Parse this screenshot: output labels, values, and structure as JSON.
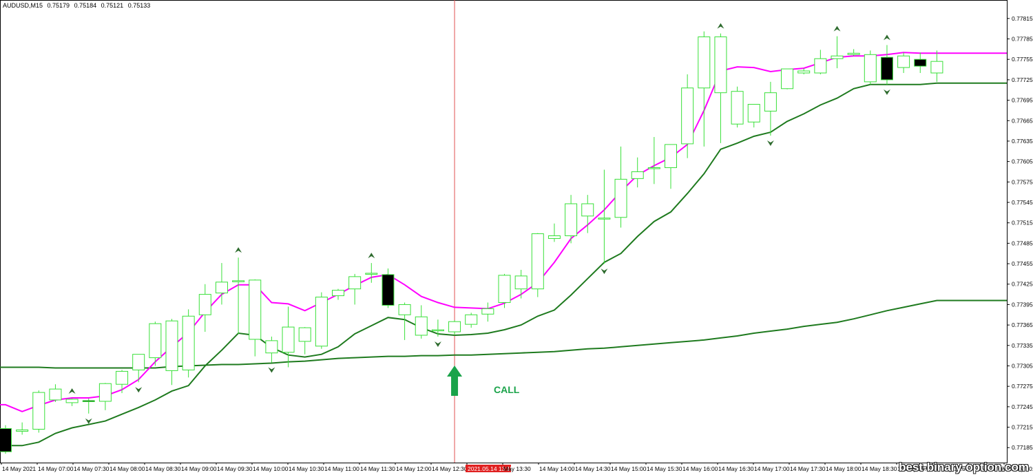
{
  "header": {
    "symbol": "AUDUSD,M15",
    "open": "0.75179",
    "high": "0.75184",
    "low": "0.75121",
    "close": "0.75133"
  },
  "signal": {
    "label": "CALL",
    "time_label": "2021.05.14 13:15",
    "arrow_color": "#1aa34a",
    "line_color": "#e05050"
  },
  "watermark": "best-binary-option.com",
  "colors": {
    "bull_body": "#ffffff",
    "bull_border": "#38e038",
    "bear_body": "#000000",
    "wick": "#38e038",
    "ma_fast": "#ff00ff",
    "ma_slow": "#1e7a1e",
    "ma_long": "#1e7a1e",
    "fractal": "#2e6b2e",
    "grid_text": "#000000"
  },
  "chart_data": {
    "type": "candlestick",
    "symbol": "AUDUSD,M15",
    "y_ticks": [
      "0.77815",
      "0.77785",
      "0.77755",
      "0.77725",
      "0.77695",
      "0.77665",
      "0.77635",
      "0.77605",
      "0.77575",
      "0.77545",
      "0.77515",
      "0.77485",
      "0.77455",
      "0.77425",
      "0.77395",
      "0.77365",
      "0.77335",
      "0.77305",
      "0.77275",
      "0.77245",
      "0.77215",
      "0.77185"
    ],
    "ylim": [
      0.77163,
      0.7783
    ],
    "x_ticks": [
      "14 May 2021",
      "14 May 07:00",
      "14 May 07:30",
      "14 May 08:00",
      "14 May 08:30",
      "14 May 09:00",
      "14 May 09:30",
      "14 May 10:00",
      "14 May 10:30",
      "14 May 11:00",
      "14 May 11:30",
      "14 May 12:00",
      "14 May 12:30",
      "2021.05.14 13:15",
      "May 13:30",
      "14 May 14:00",
      "14 May 14:30",
      "14 May 15:00",
      "14 May 15:30",
      "14 May 16:00",
      "14 May 16:30",
      "14 May 17:00",
      "14 May 17:30",
      "14 May 18:00",
      "14 May 18:30",
      "14 May 19:00",
      "14 May 19:30",
      "14 May 20:00",
      "14 May 20:"
    ],
    "candles": [
      {
        "o": 0.77213,
        "h": 0.77218,
        "l": 0.77176,
        "c": 0.77179
      },
      {
        "o": 0.77209,
        "h": 0.77222,
        "l": 0.77204,
        "c": 0.77211
      },
      {
        "o": 0.77212,
        "h": 0.77269,
        "l": 0.77207,
        "c": 0.77266
      },
      {
        "o": 0.77255,
        "h": 0.77278,
        "l": 0.77252,
        "c": 0.77271
      },
      {
        "o": 0.77251,
        "h": 0.77257,
        "l": 0.77246,
        "c": 0.77256
      },
      {
        "o": 0.77254,
        "h": 0.77257,
        "l": 0.77235,
        "c": 0.77253
      },
      {
        "o": 0.77253,
        "h": 0.7728,
        "l": 0.7724,
        "c": 0.77279
      },
      {
        "o": 0.77278,
        "h": 0.77299,
        "l": 0.77265,
        "c": 0.77297
      },
      {
        "o": 0.77299,
        "h": 0.77321,
        "l": 0.77281,
        "c": 0.77322
      },
      {
        "o": 0.77317,
        "h": 0.7737,
        "l": 0.77305,
        "c": 0.77367
      },
      {
        "o": 0.77298,
        "h": 0.77374,
        "l": 0.77277,
        "c": 0.77371
      },
      {
        "o": 0.77299,
        "h": 0.77388,
        "l": 0.77288,
        "c": 0.77378
      },
      {
        "o": 0.7738,
        "h": 0.77425,
        "l": 0.77355,
        "c": 0.7741
      },
      {
        "o": 0.77412,
        "h": 0.77456,
        "l": 0.77395,
        "c": 0.77428
      },
      {
        "o": 0.77429,
        "h": 0.77464,
        "l": 0.77352,
        "c": 0.7743
      },
      {
        "o": 0.77344,
        "h": 0.77432,
        "l": 0.77319,
        "c": 0.77431
      },
      {
        "o": 0.77324,
        "h": 0.77348,
        "l": 0.7731,
        "c": 0.77342
      },
      {
        "o": 0.77325,
        "h": 0.77392,
        "l": 0.77303,
        "c": 0.77362
      },
      {
        "o": 0.77341,
        "h": 0.77362,
        "l": 0.77322,
        "c": 0.77361
      },
      {
        "o": 0.77334,
        "h": 0.77413,
        "l": 0.7733,
        "c": 0.77406
      },
      {
        "o": 0.77408,
        "h": 0.77418,
        "l": 0.77402,
        "c": 0.77416
      },
      {
        "o": 0.77418,
        "h": 0.7744,
        "l": 0.77395,
        "c": 0.77436
      },
      {
        "o": 0.77441,
        "h": 0.77456,
        "l": 0.77427,
        "c": 0.77441
      },
      {
        "o": 0.77439,
        "h": 0.77448,
        "l": 0.7739,
        "c": 0.77394
      },
      {
        "o": 0.7738,
        "h": 0.77398,
        "l": 0.77343,
        "c": 0.77395
      },
      {
        "o": 0.7735,
        "h": 0.77394,
        "l": 0.77345,
        "c": 0.77377
      },
      {
        "o": 0.77358,
        "h": 0.77373,
        "l": 0.77348,
        "c": 0.77358
      },
      {
        "o": 0.77355,
        "h": 0.77372,
        "l": 0.7735,
        "c": 0.7737
      },
      {
        "o": 0.77366,
        "h": 0.77383,
        "l": 0.77361,
        "c": 0.7738
      },
      {
        "o": 0.77381,
        "h": 0.77398,
        "l": 0.7737,
        "c": 0.77389
      },
      {
        "o": 0.77398,
        "h": 0.7744,
        "l": 0.7739,
        "c": 0.77438
      },
      {
        "o": 0.77418,
        "h": 0.77446,
        "l": 0.77404,
        "c": 0.77437
      },
      {
        "o": 0.77418,
        "h": 0.775,
        "l": 0.77406,
        "c": 0.77499
      },
      {
        "o": 0.77492,
        "h": 0.77514,
        "l": 0.77487,
        "c": 0.77496
      },
      {
        "o": 0.77496,
        "h": 0.77556,
        "l": 0.77485,
        "c": 0.77543
      },
      {
        "o": 0.77525,
        "h": 0.77556,
        "l": 0.775,
        "c": 0.77543
      },
      {
        "o": 0.77521,
        "h": 0.77593,
        "l": 0.77455,
        "c": 0.77522
      },
      {
        "o": 0.77523,
        "h": 0.77627,
        "l": 0.77508,
        "c": 0.77579
      },
      {
        "o": 0.7758,
        "h": 0.77611,
        "l": 0.77567,
        "c": 0.7759
      },
      {
        "o": 0.77595,
        "h": 0.77641,
        "l": 0.77572,
        "c": 0.77596
      },
      {
        "o": 0.77596,
        "h": 0.77625,
        "l": 0.77565,
        "c": 0.7763
      },
      {
        "o": 0.77631,
        "h": 0.77733,
        "l": 0.7761,
        "c": 0.77713
      },
      {
        "o": 0.77713,
        "h": 0.77796,
        "l": 0.77627,
        "c": 0.77788
      },
      {
        "o": 0.77706,
        "h": 0.77793,
        "l": 0.77632,
        "c": 0.77788
      },
      {
        "o": 0.7766,
        "h": 0.77715,
        "l": 0.77655,
        "c": 0.77708
      },
      {
        "o": 0.77663,
        "h": 0.77688,
        "l": 0.77655,
        "c": 0.77689
      },
      {
        "o": 0.77679,
        "h": 0.77722,
        "l": 0.77643,
        "c": 0.77706
      },
      {
        "o": 0.77712,
        "h": 0.77741,
        "l": 0.77711,
        "c": 0.77741
      },
      {
        "o": 0.77735,
        "h": 0.77742,
        "l": 0.77733,
        "c": 0.77738
      },
      {
        "o": 0.77735,
        "h": 0.77769,
        "l": 0.77733,
        "c": 0.77756
      },
      {
        "o": 0.77756,
        "h": 0.77789,
        "l": 0.77742,
        "c": 0.7776
      },
      {
        "o": 0.77762,
        "h": 0.7777,
        "l": 0.7776,
        "c": 0.77764
      },
      {
        "o": 0.77722,
        "h": 0.77768,
        "l": 0.77718,
        "c": 0.77762
      },
      {
        "o": 0.77758,
        "h": 0.77776,
        "l": 0.77718,
        "c": 0.77725
      },
      {
        "o": 0.77743,
        "h": 0.77765,
        "l": 0.77735,
        "c": 0.7776
      },
      {
        "o": 0.77755,
        "h": 0.77765,
        "l": 0.77735,
        "c": 0.77745
      },
      {
        "o": 0.77735,
        "h": 0.77768,
        "l": 0.77722,
        "c": 0.77752
      }
    ],
    "ma_fast": [
      0.77248,
      0.77238,
      0.77247,
      0.77255,
      0.77258,
      0.77258,
      0.77261,
      0.7727,
      0.77285,
      0.77311,
      0.77333,
      0.77354,
      0.77384,
      0.7741,
      0.77424,
      0.77424,
      0.77398,
      0.77396,
      0.77386,
      0.77398,
      0.7741,
      0.77423,
      0.77435,
      0.77439,
      0.77424,
      0.77407,
      0.77398,
      0.77391,
      0.7739,
      0.77389,
      0.77397,
      0.7741,
      0.77427,
      0.77457,
      0.77492,
      0.77512,
      0.77534,
      0.77561,
      0.77585,
      0.77599,
      0.77611,
      0.7763,
      0.7768,
      0.77738,
      0.77744,
      0.77743,
      0.77737,
      0.7774,
      0.77742,
      0.7775,
      0.77758,
      0.7776,
      0.7776,
      0.77762,
      0.77765,
      0.77764,
      0.77764
    ],
    "ma_slow": [
      0.77188,
      0.77188,
      0.77193,
      0.77206,
      0.77214,
      0.77219,
      0.77224,
      0.77234,
      0.77244,
      0.77255,
      0.77268,
      0.77276,
      0.77305,
      0.77328,
      0.77353,
      0.7735,
      0.77332,
      0.77321,
      0.77318,
      0.77322,
      0.77333,
      0.77352,
      0.77364,
      0.77376,
      0.77373,
      0.77361,
      0.77352,
      0.7735,
      0.77351,
      0.77353,
      0.77358,
      0.77365,
      0.77378,
      0.77387,
      0.77409,
      0.77433,
      0.77457,
      0.7747,
      0.77495,
      0.77517,
      0.77531,
      0.77558,
      0.77587,
      0.77623,
      0.77632,
      0.77642,
      0.77648,
      0.77664,
      0.77675,
      0.77688,
      0.77698,
      0.77712,
      0.77718,
      0.77718,
      0.77718,
      0.77718,
      0.7772
    ],
    "ma_long": [
      0.77303,
      0.77303,
      0.77303,
      0.77302,
      0.77302,
      0.77302,
      0.77302,
      0.77302,
      0.77302,
      0.77302,
      0.77304,
      0.77305,
      0.77306,
      0.77307,
      0.77307,
      0.77308,
      0.77309,
      0.77311,
      0.77312,
      0.77314,
      0.77316,
      0.77317,
      0.77318,
      0.77319,
      0.77319,
      0.7732,
      0.7732,
      0.77321,
      0.77321,
      0.77322,
      0.77323,
      0.77324,
      0.77325,
      0.77326,
      0.77328,
      0.7733,
      0.77331,
      0.77333,
      0.77335,
      0.77337,
      0.77339,
      0.77341,
      0.77343,
      0.77346,
      0.77349,
      0.77353,
      0.77356,
      0.77359,
      0.77363,
      0.77366,
      0.77369,
      0.77374,
      0.7738,
      0.77386,
      0.77391,
      0.77396,
      0.77401
    ],
    "fractals_up": [
      4,
      14,
      22,
      43,
      50,
      53
    ],
    "fractals_down": [
      5,
      8,
      16,
      26,
      36,
      46,
      53
    ],
    "signal_index": 27
  }
}
